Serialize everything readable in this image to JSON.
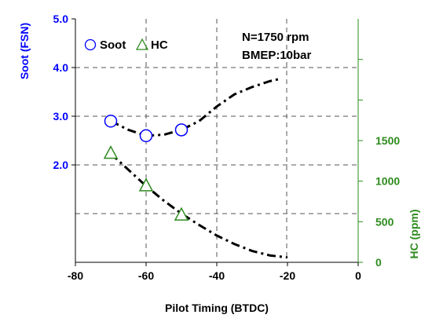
{
  "chart_data": {
    "type": "scatter",
    "xlabel": "Pilot Timing (BTDC)",
    "xlim": [
      -80,
      0
    ],
    "x_ticks": [
      -80,
      -60,
      -40,
      -20,
      0
    ],
    "y_left": {
      "label": "Soot (FSN)",
      "lim": [
        0,
        5
      ],
      "ticks": [
        2.0,
        3.0,
        4.0,
        5.0
      ],
      "tick_labels": [
        "2.0",
        "3.0",
        "4.0",
        "5.0"
      ],
      "color": "#0000ff"
    },
    "y_right": {
      "label": "HC (ppm)",
      "lim": [
        0,
        3000
      ],
      "ticks": [
        0,
        500,
        1000,
        1500
      ],
      "tick_labels": [
        "0",
        "500",
        "1000",
        "1500"
      ],
      "minor_ticks": [
        2000,
        2500
      ],
      "color": "#2e8b1f"
    },
    "series": [
      {
        "name": "Soot",
        "axis": "left",
        "marker": "circle",
        "color": "#0000ff",
        "points": [
          [
            -70,
            2.9
          ],
          [
            -60,
            2.6
          ],
          [
            -50,
            2.72
          ]
        ],
        "fit_curve": [
          [
            -70,
            2.9
          ],
          [
            -65,
            2.72
          ],
          [
            -60,
            2.6
          ],
          [
            -55,
            2.62
          ],
          [
            -50,
            2.72
          ],
          [
            -45,
            2.9
          ],
          [
            -40,
            3.2
          ],
          [
            -35,
            3.45
          ],
          [
            -30,
            3.6
          ],
          [
            -25,
            3.72
          ],
          [
            -22,
            3.77
          ]
        ]
      },
      {
        "name": "HC",
        "axis": "right",
        "marker": "triangle",
        "color": "#2e8b1f",
        "points": [
          [
            -70,
            1340
          ],
          [
            -60,
            940
          ],
          [
            -50,
            580
          ]
        ],
        "fit_curve": [
          [
            -70,
            1340
          ],
          [
            -65,
            1140
          ],
          [
            -60,
            940
          ],
          [
            -55,
            760
          ],
          [
            -50,
            600
          ],
          [
            -45,
            460
          ],
          [
            -40,
            330
          ],
          [
            -35,
            225
          ],
          [
            -30,
            140
          ],
          [
            -25,
            85
          ],
          [
            -20,
            60
          ]
        ]
      }
    ],
    "annotations": [
      "N=1750 rpm",
      "BMEP:10bar"
    ],
    "legend_placement": "top-left",
    "grid": "dashed, partial"
  }
}
